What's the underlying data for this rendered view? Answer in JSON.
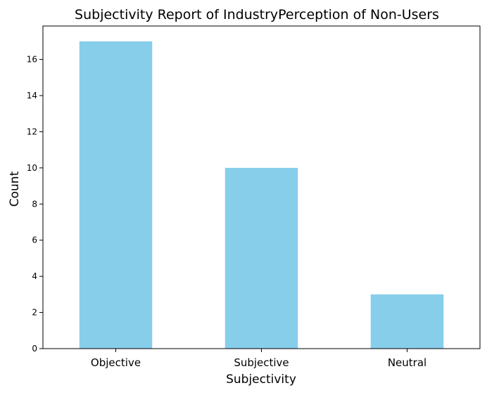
{
  "chart_data": {
    "type": "bar",
    "title": "Subjectivity Report of IndustryPerception of Non-Users",
    "xlabel": "Subjectivity",
    "ylabel": "Count",
    "categories": [
      "Objective",
      "Subjective",
      "Neutral"
    ],
    "values": [
      17,
      10,
      3
    ],
    "ylim": [
      0,
      17.85
    ],
    "yticks": [
      0,
      2,
      4,
      6,
      8,
      10,
      12,
      14,
      16
    ],
    "grid": false,
    "legend": "none",
    "bar_color": "#87CEEB"
  }
}
